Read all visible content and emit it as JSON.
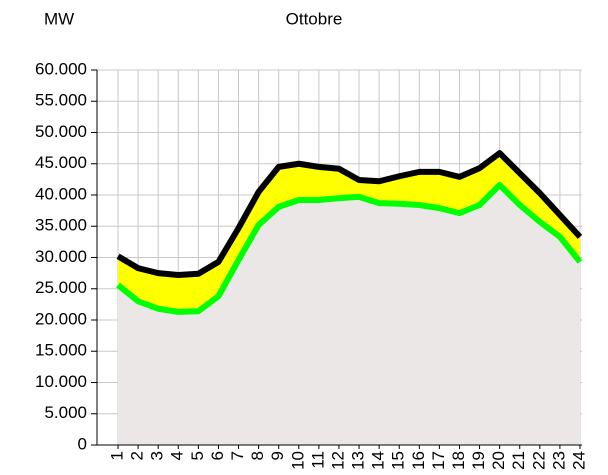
{
  "chart_data": {
    "type": "line",
    "title": "Ottobre",
    "y_label": "MW",
    "categories": [
      "1",
      "2",
      "3",
      "4",
      "5",
      "6",
      "7",
      "8",
      "9",
      "10",
      "11",
      "12",
      "13",
      "14",
      "15",
      "16",
      "17",
      "18",
      "19",
      "20",
      "21",
      "22",
      "23",
      "24"
    ],
    "series": [
      {
        "color": "#000000",
        "fill": "#ffff00",
        "values": [
          30200,
          28300,
          27500,
          27200,
          27400,
          29300,
          34700,
          40500,
          44500,
          45000,
          44500,
          44200,
          42400,
          42200,
          43000,
          43700,
          43700,
          42900,
          44300,
          46700,
          43500,
          40300,
          36800,
          33300
        ]
      },
      {
        "color": "#00ff00",
        "fill": "#ebe7e7",
        "values": [
          25600,
          23000,
          21800,
          21300,
          21400,
          23800,
          29600,
          35200,
          38100,
          39200,
          39200,
          39500,
          39700,
          38700,
          38600,
          38400,
          37900,
          37100,
          38400,
          41600,
          38400,
          35700,
          33300,
          29300
        ]
      }
    ],
    "ylim": [
      0,
      60000
    ],
    "yticks": [
      0,
      {
        "value": 5000,
        "label": "5.000"
      },
      {
        "value": 10000,
        "label": "10.000"
      },
      {
        "value": 15000,
        "label": "15.000"
      },
      {
        "value": 20000,
        "label": "20.000"
      },
      {
        "value": 25000,
        "label": "25.000"
      },
      {
        "value": 30000,
        "label": "30.000"
      },
      {
        "value": 35000,
        "label": "35.000"
      },
      {
        "value": 40000,
        "label": "40.000"
      },
      {
        "value": 45000,
        "label": "45.000"
      },
      {
        "value": 50000,
        "label": "50.000"
      },
      {
        "value": 55000,
        "label": "55.000"
      },
      {
        "value": 60000,
        "label": "60.000"
      }
    ],
    "grid": true
  }
}
